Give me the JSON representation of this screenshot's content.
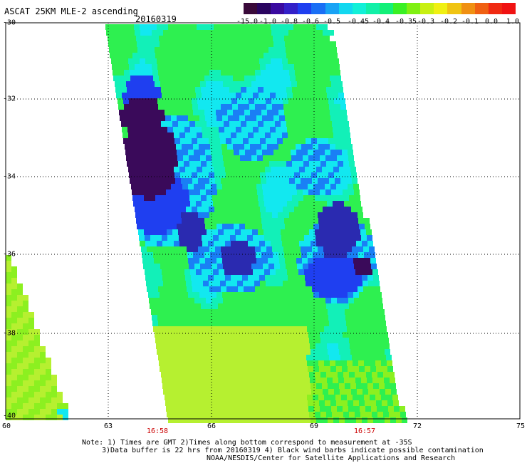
{
  "header": {
    "title": "ASCAT 25KM MLE-2 ascending",
    "date": "20160319"
  },
  "colorbar": {
    "colors": [
      "#3a0a3a",
      "#2a0560",
      "#3a0aa0",
      "#3320c8",
      "#1f3ff0",
      "#1a6ff5",
      "#19a3f5",
      "#12d8f0",
      "#12f0d8",
      "#12f0a8",
      "#12f078",
      "#3af024",
      "#80f012",
      "#c8f012",
      "#f0f012",
      "#f0c412",
      "#f09012",
      "#f06012",
      "#f02a12",
      "#f01212"
    ],
    "labels": [
      "-15.0",
      "-1.0",
      "-0.8",
      "-0.6",
      "-0.5",
      "-0.45",
      "-0.4",
      "-0.35",
      "-0.3",
      "-0.2",
      "-0.1",
      "0.0",
      "1.0"
    ]
  },
  "axes": {
    "x_ticks": [
      "60",
      "63",
      "66",
      "69",
      "72",
      "75"
    ],
    "y_ticks": [
      "-30",
      "-32",
      "-34",
      "-36",
      "-38",
      "-40"
    ]
  },
  "swath_times": [
    "16:58",
    "16:57"
  ],
  "notes": {
    "line1": "Note: 1) Times are GMT 2)Times along bottom correspond to measurement at -35S",
    "line2": "3)Data buffer is 22 hrs from 20160319 4) Black wind barbs indicate possible contamination",
    "line3": "NOAA/NESDIS/Center for Satellite Applications and Research"
  }
}
